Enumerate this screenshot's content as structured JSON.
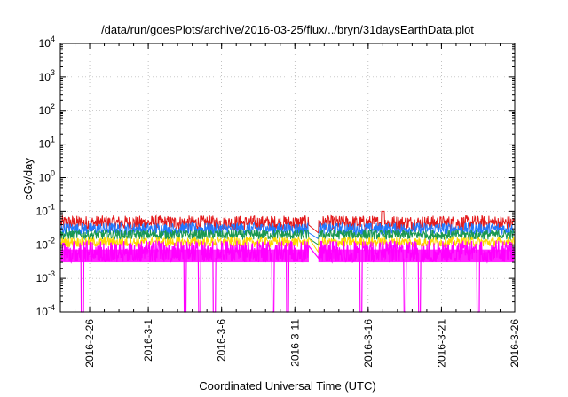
{
  "chart_data": {
    "type": "line",
    "title": "/data/run/goesPlots/archive/2016-03-25/flux/../bryn/31daysEarthData.plot",
    "xlabel": "Coordinated Universal Time (UTC)",
    "ylabel": "cGy/day",
    "x_tick_labels": [
      "2016-2-26",
      "2016-3-1",
      "2016-3-6",
      "2016-3-11",
      "2016-3-16",
      "2016-3-21",
      "2016-3-26"
    ],
    "x_tick_dates": [
      "2016-02-26",
      "2016-03-01",
      "2016-03-06",
      "2016-03-11",
      "2016-03-16",
      "2016-03-21",
      "2016-03-26"
    ],
    "xlim": [
      "2016-02-24",
      "2016-03-26"
    ],
    "y_scale": "log",
    "ylim": [
      0.0001,
      10000
    ],
    "y_tick_values": [
      0.0001,
      0.001,
      0.01,
      0.1,
      1,
      10,
      100,
      1000,
      10000
    ],
    "y_tick_labels": [
      {
        "base": "10",
        "exp": "-4"
      },
      {
        "base": "10",
        "exp": "-3"
      },
      {
        "base": "10",
        "exp": "-2"
      },
      {
        "base": "10",
        "exp": "-1"
      },
      {
        "base": "10",
        "exp": "0"
      },
      {
        "base": "10",
        "exp": "1"
      },
      {
        "base": "10",
        "exp": "2"
      },
      {
        "base": "10",
        "exp": "3"
      },
      {
        "base": "10",
        "exp": "4"
      }
    ],
    "grid": true,
    "legend": "none",
    "data_gap": [
      "2016-03-11",
      "2016-03-12"
    ],
    "series": [
      {
        "color": "#e41a1c",
        "typical": 0.045,
        "spread": 0.22,
        "peaks": [
          [
            "2016-03-17",
            0.1
          ]
        ]
      },
      {
        "color": "#1f78ff",
        "typical": 0.03,
        "spread": 0.18,
        "peaks": []
      },
      {
        "color": "#1a9850",
        "typical": 0.02,
        "spread": 0.15,
        "peaks": []
      },
      {
        "color": "#ffd700",
        "typical": 0.012,
        "spread": 0.15,
        "peaks": []
      },
      {
        "color": "#ff00ff",
        "typical": 0.008,
        "spread": 0.22,
        "floor": 0.003,
        "dropouts": [
          "2016-02-25",
          "2016-03-03",
          "2016-03-04",
          "2016-03-05",
          "2016-03-09",
          "2016-03-10",
          "2016-03-15",
          "2016-03-18",
          "2016-03-19",
          "2016-03-23"
        ]
      }
    ]
  }
}
